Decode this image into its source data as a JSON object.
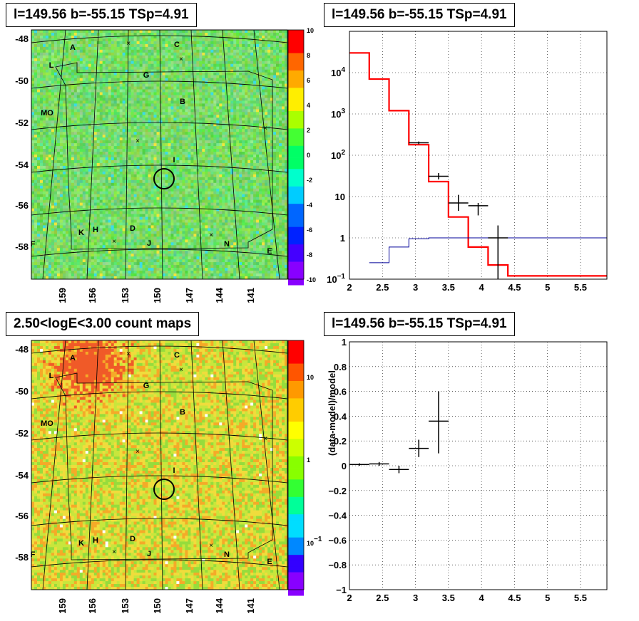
{
  "chart_data": [
    {
      "type": "heatmap",
      "title": "l=149.56 b=-55.15 TSp=4.91",
      "xticks": [
        "159",
        "156",
        "153",
        "150",
        "147",
        "144",
        "141"
      ],
      "yticks": [
        "-48",
        "-50",
        "-52",
        "-54",
        "-56",
        "-58"
      ],
      "colorbar": {
        "min": -10,
        "max": 10,
        "ticks": [
          "10",
          "8",
          "6",
          "4",
          "2",
          "0",
          "-2",
          "-4",
          "-6",
          "-8",
          "-10"
        ]
      },
      "grid": true,
      "source_labels": [
        "A",
        "C",
        "L",
        "G",
        "B",
        "MO",
        "I",
        "K",
        "H",
        "D",
        "J",
        "N",
        "E",
        "F"
      ]
    },
    {
      "type": "line",
      "title": "l=149.56 b=-55.15 TSp=4.91",
      "xlim": [
        2,
        5.9
      ],
      "ylim": [
        0.1,
        100000
      ],
      "yscale": "log",
      "xticks": [
        "2",
        "2.5",
        "3",
        "3.5",
        "4",
        "4.5",
        "5",
        "5.5"
      ],
      "yticks": [
        {
          "base": "10",
          "exp": "4"
        },
        {
          "base": "10",
          "exp": "3"
        },
        {
          "base": "10",
          "exp": "2"
        },
        {
          "base": "10",
          "exp": ""
        },
        {
          "base": "1",
          "exp": ""
        },
        {
          "base": "10",
          "exp": "−1"
        }
      ],
      "grid": true,
      "series": [
        {
          "style": "step",
          "color": "#ff0000",
          "edges": [
            2.0,
            2.3,
            2.6,
            2.9,
            3.2,
            3.5,
            3.8,
            4.1,
            4.4,
            5.9
          ],
          "values": [
            30000,
            7000,
            1200,
            180,
            23,
            3.2,
            0.6,
            0.22,
            0.12
          ]
        },
        {
          "style": "step",
          "color": "#000099",
          "edges": [
            2.3,
            2.6,
            2.9,
            3.2,
            5.9
          ],
          "values": [
            0.25,
            0.6,
            0.95,
            1.0
          ]
        },
        {
          "style": "errorbar",
          "color": "#000000",
          "points": [
            {
              "x": 3.05,
              "xerr": 0.15,
              "y": 200,
              "ylo": 185,
              "yhi": 215
            },
            {
              "x": 3.35,
              "xerr": 0.15,
              "y": 31,
              "ylo": 26,
              "yhi": 37
            },
            {
              "x": 3.65,
              "xerr": 0.15,
              "y": 7,
              "ylo": 4.5,
              "yhi": 11
            },
            {
              "x": 3.95,
              "xerr": 0.15,
              "y": 6,
              "ylo": 3.5,
              "yhi": 7
            },
            {
              "x": 4.25,
              "xerr": 0.15,
              "y": 1.0,
              "ylo": 0.1,
              "yhi": 2.0
            }
          ]
        }
      ]
    },
    {
      "type": "heatmap",
      "title": "2.50<logE<3.00 count maps",
      "xticks": [
        "159",
        "156",
        "153",
        "150",
        "147",
        "144",
        "141"
      ],
      "yticks": [
        "-48",
        "-50",
        "-52",
        "-54",
        "-56",
        "-58"
      ],
      "colorbar": {
        "scale": "log",
        "ticks": [
          {
            "base": "10",
            "exp": ""
          },
          {
            "base": "1",
            "exp": ""
          },
          {
            "base": "10",
            "exp": "−1"
          }
        ]
      },
      "grid": true,
      "source_labels": [
        "A",
        "C",
        "L",
        "G",
        "B",
        "MO",
        "I",
        "K",
        "H",
        "D",
        "J",
        "N",
        "E",
        "F"
      ]
    },
    {
      "type": "scatter",
      "title": "l=149.56 b=-55.15 TSp=4.91",
      "ylabel": "(data-model)/model",
      "xlim": [
        2,
        5.9
      ],
      "ylim": [
        -1,
        1
      ],
      "xticks": [
        "2",
        "2.5",
        "3",
        "3.5",
        "4",
        "4.5",
        "5",
        "5.5"
      ],
      "yticks": [
        "1",
        "0.8",
        "0.6",
        "0.4",
        "0.2",
        "0",
        "−0.2",
        "−0.4",
        "−0.6",
        "−0.8",
        "−1"
      ],
      "grid": true,
      "points": [
        {
          "x": 2.15,
          "xerr": 0.15,
          "y": 0.01,
          "ylo": 0.0,
          "yhi": 0.02
        },
        {
          "x": 2.45,
          "xerr": 0.15,
          "y": 0.015,
          "ylo": 0.0,
          "yhi": 0.03
        },
        {
          "x": 2.75,
          "xerr": 0.15,
          "y": -0.03,
          "ylo": -0.06,
          "yhi": 0.0
        },
        {
          "x": 3.05,
          "xerr": 0.15,
          "y": 0.14,
          "ylo": 0.07,
          "yhi": 0.21
        },
        {
          "x": 3.35,
          "xerr": 0.15,
          "y": 0.36,
          "ylo": 0.1,
          "yhi": 0.6
        }
      ]
    }
  ]
}
